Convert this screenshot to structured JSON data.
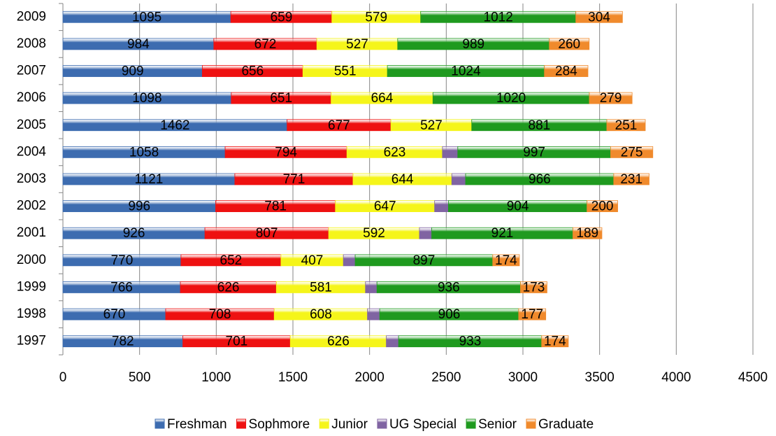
{
  "chart_data": {
    "type": "stacked_bar_horizontal",
    "categories": [
      "1997",
      "1998",
      "1999",
      "2000",
      "2001",
      "2002",
      "2003",
      "2004",
      "2005",
      "2006",
      "2007",
      "2008",
      "2009"
    ],
    "series": [
      {
        "name": "Freshman",
        "color": "#3d6cb0",
        "values": [
          782,
          670,
          766,
          770,
          926,
          996,
          1121,
          1058,
          1462,
          1098,
          909,
          984,
          1095
        ]
      },
      {
        "name": "Sophmore",
        "color": "#ee1111",
        "values": [
          701,
          708,
          626,
          652,
          807,
          781,
          771,
          794,
          677,
          651,
          656,
          672,
          659
        ]
      },
      {
        "name": "Junior",
        "color": "#f5f51a",
        "values": [
          626,
          608,
          581,
          407,
          592,
          647,
          644,
          623,
          527,
          664,
          551,
          527,
          579
        ]
      },
      {
        "name": "UG Special",
        "color": "#8064a2",
        "values": [
          80,
          80,
          75,
          77,
          80,
          90,
          90,
          100,
          null,
          null,
          null,
          null,
          null
        ]
      },
      {
        "name": "Senior",
        "color": "#1f9a1f",
        "values": [
          933,
          906,
          936,
          897,
          921,
          904,
          966,
          997,
          881,
          1020,
          1024,
          989,
          1012
        ]
      },
      {
        "name": "Graduate",
        "color": "#f08a2c",
        "values": [
          174,
          177,
          173,
          174,
          189,
          200,
          231,
          275,
          251,
          279,
          284,
          260,
          304
        ]
      }
    ],
    "xlim": [
      0,
      4500
    ],
    "xticks": [
      0,
      500,
      1000,
      1500,
      2000,
      2500,
      3000,
      3500,
      4000,
      4500
    ],
    "grid": true,
    "legend": "bottom",
    "show_labels_for": [
      "Freshman",
      "Sophmore",
      "Junior",
      "Senior",
      "Graduate"
    ]
  }
}
